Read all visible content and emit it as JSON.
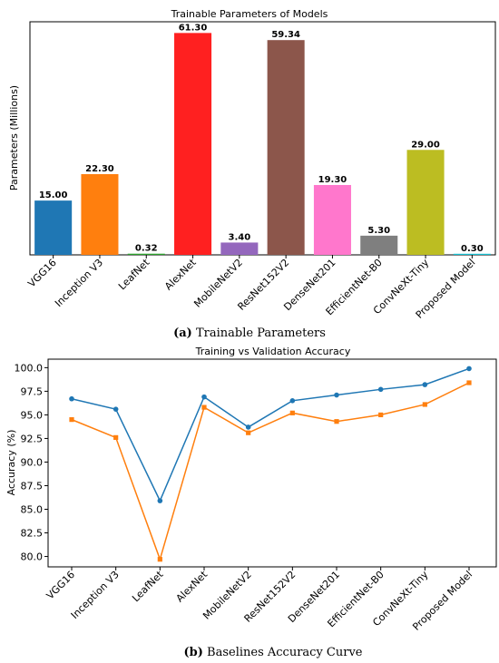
{
  "chart_data": [
    {
      "type": "bar",
      "title": "Trainable Parameters of Models",
      "xlabel": "",
      "ylabel": "Parameters (Millions)",
      "categories": [
        "VGG16",
        "Inception V3",
        "LeafNet",
        "AlexNet",
        "MobileNetV2",
        "ResNet152V2",
        "DenseNet201",
        "EfficientNet-B0",
        "ConvNeXt-Tiny",
        "Proposed Model"
      ],
      "values": [
        15.0,
        22.3,
        0.32,
        61.3,
        3.4,
        59.34,
        19.3,
        5.3,
        29.0,
        0.3
      ],
      "value_labels": [
        "15.00",
        "22.30",
        "0.32",
        "61.30",
        "3.40",
        "59.34",
        "19.30",
        "5.30",
        "29.00",
        "0.30"
      ],
      "colors": [
        "#1f77b4",
        "#ff7f0e",
        "#2ca02c",
        "#ff2020",
        "#9467bd",
        "#8c564b",
        "#ff77cc",
        "#7f7f7f",
        "#bcbd22",
        "#17becf"
      ],
      "ylim": [
        0,
        64.4
      ],
      "grid": false,
      "caption_prefix": "(a)",
      "caption": "Trainable Parameters"
    },
    {
      "type": "line",
      "title": "Training vs Validation Accuracy",
      "xlabel": "",
      "ylabel": "Accuracy (%)",
      "categories": [
        "VGG16",
        "Inception V3",
        "LeafNet",
        "AlexNet",
        "MobileNetV2",
        "ResNet152V2",
        "DenseNet201",
        "EfficientNet-B0",
        "ConvNeXt-Tiny",
        "Proposed Model"
      ],
      "series": [
        {
          "values": [
            96.7,
            95.6,
            85.9,
            96.9,
            93.7,
            96.5,
            97.1,
            97.7,
            98.2,
            99.9
          ],
          "color": "#1f77b4",
          "marker": "circle"
        },
        {
          "values": [
            94.5,
            92.6,
            79.7,
            95.8,
            93.1,
            95.2,
            94.3,
            95.0,
            96.1,
            98.4
          ],
          "color": "#ff7f0e",
          "marker": "square"
        }
      ],
      "yticks": [
        "80.0",
        "82.5",
        "85.0",
        "87.5",
        "90.0",
        "92.5",
        "95.0",
        "97.5",
        "100.0"
      ],
      "ylim": [
        78.9,
        100.9
      ],
      "grid": false,
      "caption_prefix": "(b)",
      "caption": "Baselines Accuracy Curve"
    }
  ]
}
